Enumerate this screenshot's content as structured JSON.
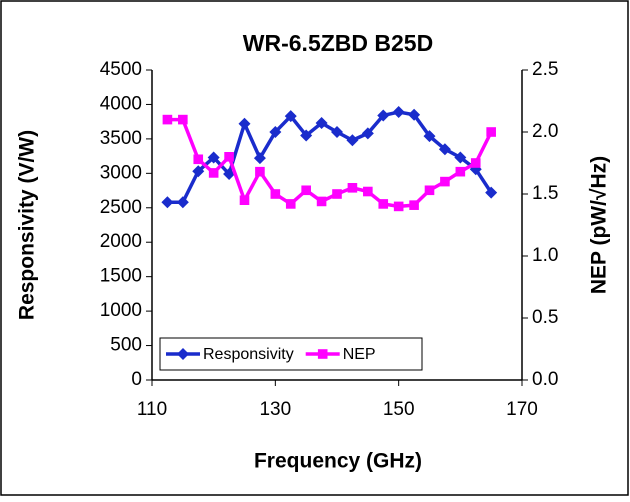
{
  "chart_data": {
    "type": "line",
    "title": "WR-6.5ZBD B25D",
    "x_label": "Frequency (GHz)",
    "y_label": "Responsivity (V/W)",
    "y2_label": "NEP (pW/√Hz)",
    "x": [
      112.5,
      115,
      117.5,
      120,
      122.5,
      125,
      127.5,
      130,
      132.5,
      135,
      137.5,
      140,
      142.5,
      145,
      147.5,
      150,
      152.5,
      155,
      157.5,
      160,
      162.5,
      165
    ],
    "series": [
      {
        "name": "Responsivity",
        "color": "#1a2ccc",
        "marker": "diamond",
        "values": [
          2580,
          2580,
          3030,
          3230,
          2990,
          3720,
          3220,
          3600,
          3830,
          3550,
          3730,
          3600,
          3480,
          3580,
          3840,
          3890,
          3850,
          3540,
          3350,
          3230,
          3060,
          2720
        ]
      },
      {
        "name": "NEP",
        "color": "#ff00ff",
        "marker": "square",
        "axis": "y2",
        "values": [
          2.1,
          2.1,
          1.78,
          1.67,
          1.8,
          1.45,
          1.68,
          1.5,
          1.42,
          1.53,
          1.44,
          1.5,
          1.55,
          1.52,
          1.42,
          1.4,
          1.41,
          1.53,
          1.6,
          1.68,
          1.75,
          2.0
        ]
      }
    ],
    "xlim": [
      110,
      170
    ],
    "xticks": [
      110,
      130,
      150,
      170
    ],
    "ylim": [
      0,
      4500
    ],
    "yticks": [
      0,
      500,
      1000,
      1500,
      2000,
      2500,
      3000,
      3500,
      4000,
      4500
    ],
    "y2lim": [
      0,
      2.5
    ],
    "y2ticks": [
      {
        "value": 0,
        "label": "0.0"
      },
      0.5,
      {
        "value": 1,
        "label": "1.0"
      },
      1.5,
      {
        "value": 2,
        "label": "2.0"
      },
      2.5
    ],
    "grid": false,
    "legend": "lower left"
  }
}
